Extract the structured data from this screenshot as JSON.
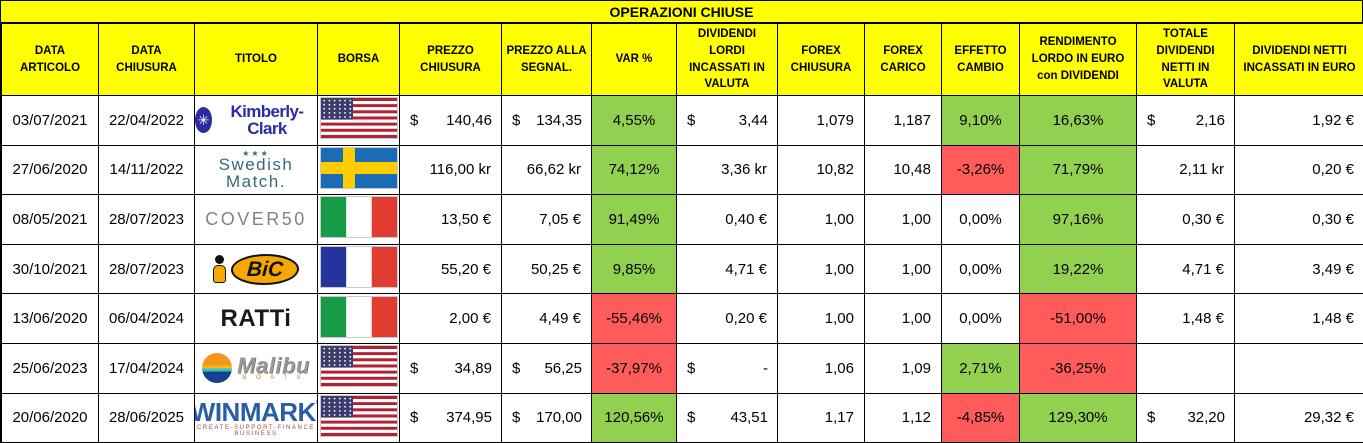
{
  "title": "OPERAZIONI CHIUSE",
  "colors": {
    "header_bg": "#FFFF00",
    "positive_bg": "#92D050",
    "negative_bg": "#FF5B5B",
    "grid": "#000000"
  },
  "columns": [
    {
      "key": "data_articolo",
      "label": "DATA ARTICOLO",
      "type": "date"
    },
    {
      "key": "data_chiusura",
      "label": "DATA CHIUSURA",
      "type": "date"
    },
    {
      "key": "titolo",
      "label": "TITOLO",
      "type": "logo"
    },
    {
      "key": "borsa",
      "label": "BORSA",
      "type": "flag"
    },
    {
      "key": "prezzo_chiusura",
      "label": "PREZZO CHIUSURA",
      "type": "money"
    },
    {
      "key": "prezzo_segnal",
      "label": "PREZZO ALLA SEGNAL.",
      "type": "money"
    },
    {
      "key": "var_pct",
      "label": "VAR %",
      "type": "pct"
    },
    {
      "key": "dividendi_lordi",
      "label": "DIVIDENDI LORDI INCASSATI IN VALUTA",
      "type": "money"
    },
    {
      "key": "forex_chiusura",
      "label": "FOREX CHIUSURA",
      "type": "num"
    },
    {
      "key": "forex_carico",
      "label": "FOREX CARICO",
      "type": "num"
    },
    {
      "key": "effetto_cambio",
      "label": "EFFETTO CAMBIO",
      "type": "pct"
    },
    {
      "key": "rendimento",
      "label": "RENDIMENTO LORDO IN EURO con DIVIDENDI",
      "type": "pct"
    },
    {
      "key": "tot_div_netti_valuta",
      "label": "TOTALE DIVIDENDI NETTI IN VALUTA",
      "type": "money"
    },
    {
      "key": "div_netti_euro",
      "label": "DIVIDENDI NETTI INCASSATI IN EURO",
      "type": "money"
    }
  ],
  "logos": {
    "kimberly-clark": {
      "brand": "Kimberly-Clark",
      "glyph": "✳"
    },
    "swedish-match": {
      "stars": "★★★",
      "line1": "Swedish",
      "line2": "Match."
    },
    "cover50": {
      "brand": "COVER50"
    },
    "bic": {
      "brand": "BiC"
    },
    "ratti": {
      "brand": "RATTi"
    },
    "malibu": {
      "brand": "Malibu",
      "sub": "B O A T S"
    },
    "winmark": {
      "brand": "WINMARK",
      "reg": "®",
      "sub": "CREATE-SUPPORT-FINANCE BUSINESS"
    }
  },
  "rows": [
    {
      "data_articolo": "03/07/2021",
      "data_chiusura": "22/04/2022",
      "titolo": "kimberly-clark",
      "borsa": "usa",
      "prezzo_chiusura": {
        "sym": "$",
        "num": "140,46"
      },
      "prezzo_segnal": {
        "sym": "$",
        "num": "134,35"
      },
      "var_pct": {
        "text": "4,55%",
        "bg": "green"
      },
      "dividendi_lordi": {
        "sym": "$",
        "num": "3,44"
      },
      "forex_chiusura": "1,079",
      "forex_carico": "1,187",
      "effetto_cambio": {
        "text": "9,10%",
        "bg": "green"
      },
      "rendimento": {
        "text": "16,63%",
        "bg": "green"
      },
      "tot_div_netti_valuta": {
        "sym": "$",
        "num": "2,16"
      },
      "div_netti_euro": "1,92 €"
    },
    {
      "data_articolo": "27/06/2020",
      "data_chiusura": "14/11/2022",
      "titolo": "swedish-match",
      "borsa": "sweden",
      "prezzo_chiusura": "116,00 kr",
      "prezzo_segnal": "66,62 kr",
      "var_pct": {
        "text": "74,12%",
        "bg": "green"
      },
      "dividendi_lordi": "3,36 kr",
      "forex_chiusura": "10,82",
      "forex_carico": "10,48",
      "effetto_cambio": {
        "text": "-3,26%",
        "bg": "red"
      },
      "rendimento": {
        "text": "71,79%",
        "bg": "green"
      },
      "tot_div_netti_valuta": "2,11 kr",
      "div_netti_euro": "0,20 €"
    },
    {
      "data_articolo": "08/05/2021",
      "data_chiusura": "28/07/2023",
      "titolo": "cover50",
      "borsa": "italy",
      "prezzo_chiusura": "13,50 €",
      "prezzo_segnal": "7,05 €",
      "var_pct": {
        "text": "91,49%",
        "bg": "green"
      },
      "dividendi_lordi": "0,40 €",
      "forex_chiusura": "1,00",
      "forex_carico": "1,00",
      "effetto_cambio": {
        "text": "0,00%",
        "bg": "none"
      },
      "rendimento": {
        "text": "97,16%",
        "bg": "green"
      },
      "tot_div_netti_valuta": "0,30 €",
      "div_netti_euro": "0,30 €"
    },
    {
      "data_articolo": "30/10/2021",
      "data_chiusura": "28/07/2023",
      "titolo": "bic",
      "borsa": "france",
      "prezzo_chiusura": "55,20 €",
      "prezzo_segnal": "50,25 €",
      "var_pct": {
        "text": "9,85%",
        "bg": "green"
      },
      "dividendi_lordi": "4,71 €",
      "forex_chiusura": "1,00",
      "forex_carico": "1,00",
      "effetto_cambio": {
        "text": "0,00%",
        "bg": "none"
      },
      "rendimento": {
        "text": "19,22%",
        "bg": "green"
      },
      "tot_div_netti_valuta": "4,71 €",
      "div_netti_euro": "3,49 €"
    },
    {
      "data_articolo": "13/06/2020",
      "data_chiusura": "06/04/2024",
      "titolo": "ratti",
      "borsa": "italy",
      "prezzo_chiusura": "2,00 €",
      "prezzo_segnal": "4,49 €",
      "var_pct": {
        "text": "-55,46%",
        "bg": "red"
      },
      "dividendi_lordi": "0,20 €",
      "forex_chiusura": "1,00",
      "forex_carico": "1,00",
      "effetto_cambio": {
        "text": "0,00%",
        "bg": "none"
      },
      "rendimento": {
        "text": "-51,00%",
        "bg": "red"
      },
      "tot_div_netti_valuta": "1,48 €",
      "div_netti_euro": "1,48 €"
    },
    {
      "data_articolo": "25/06/2023",
      "data_chiusura": "17/04/2024",
      "titolo": "malibu",
      "borsa": "usa",
      "prezzo_chiusura": {
        "sym": "$",
        "num": "34,89"
      },
      "prezzo_segnal": {
        "sym": "$",
        "num": "56,25"
      },
      "var_pct": {
        "text": "-37,97%",
        "bg": "red"
      },
      "dividendi_lordi": {
        "sym": "$",
        "num": "-"
      },
      "forex_chiusura": "1,06",
      "forex_carico": "1,09",
      "effetto_cambio": {
        "text": "2,71%",
        "bg": "green"
      },
      "rendimento": {
        "text": "-36,25%",
        "bg": "red"
      },
      "tot_div_netti_valuta": "",
      "div_netti_euro": ""
    },
    {
      "data_articolo": "20/06/2020",
      "data_chiusura": "28/06/2025",
      "titolo": "winmark",
      "borsa": "usa",
      "prezzo_chiusura": {
        "sym": "$",
        "num": "374,95"
      },
      "prezzo_segnal": {
        "sym": "$",
        "num": "170,00"
      },
      "var_pct": {
        "text": "120,56%",
        "bg": "green"
      },
      "dividendi_lordi": {
        "sym": "$",
        "num": "43,51"
      },
      "forex_chiusura": "1,17",
      "forex_carico": "1,12",
      "effetto_cambio": {
        "text": "-4,85%",
        "bg": "red"
      },
      "rendimento": {
        "text": "129,30%",
        "bg": "green"
      },
      "tot_div_netti_valuta": {
        "sym": "$",
        "num": "32,20"
      },
      "div_netti_euro": "29,32 €"
    }
  ]
}
